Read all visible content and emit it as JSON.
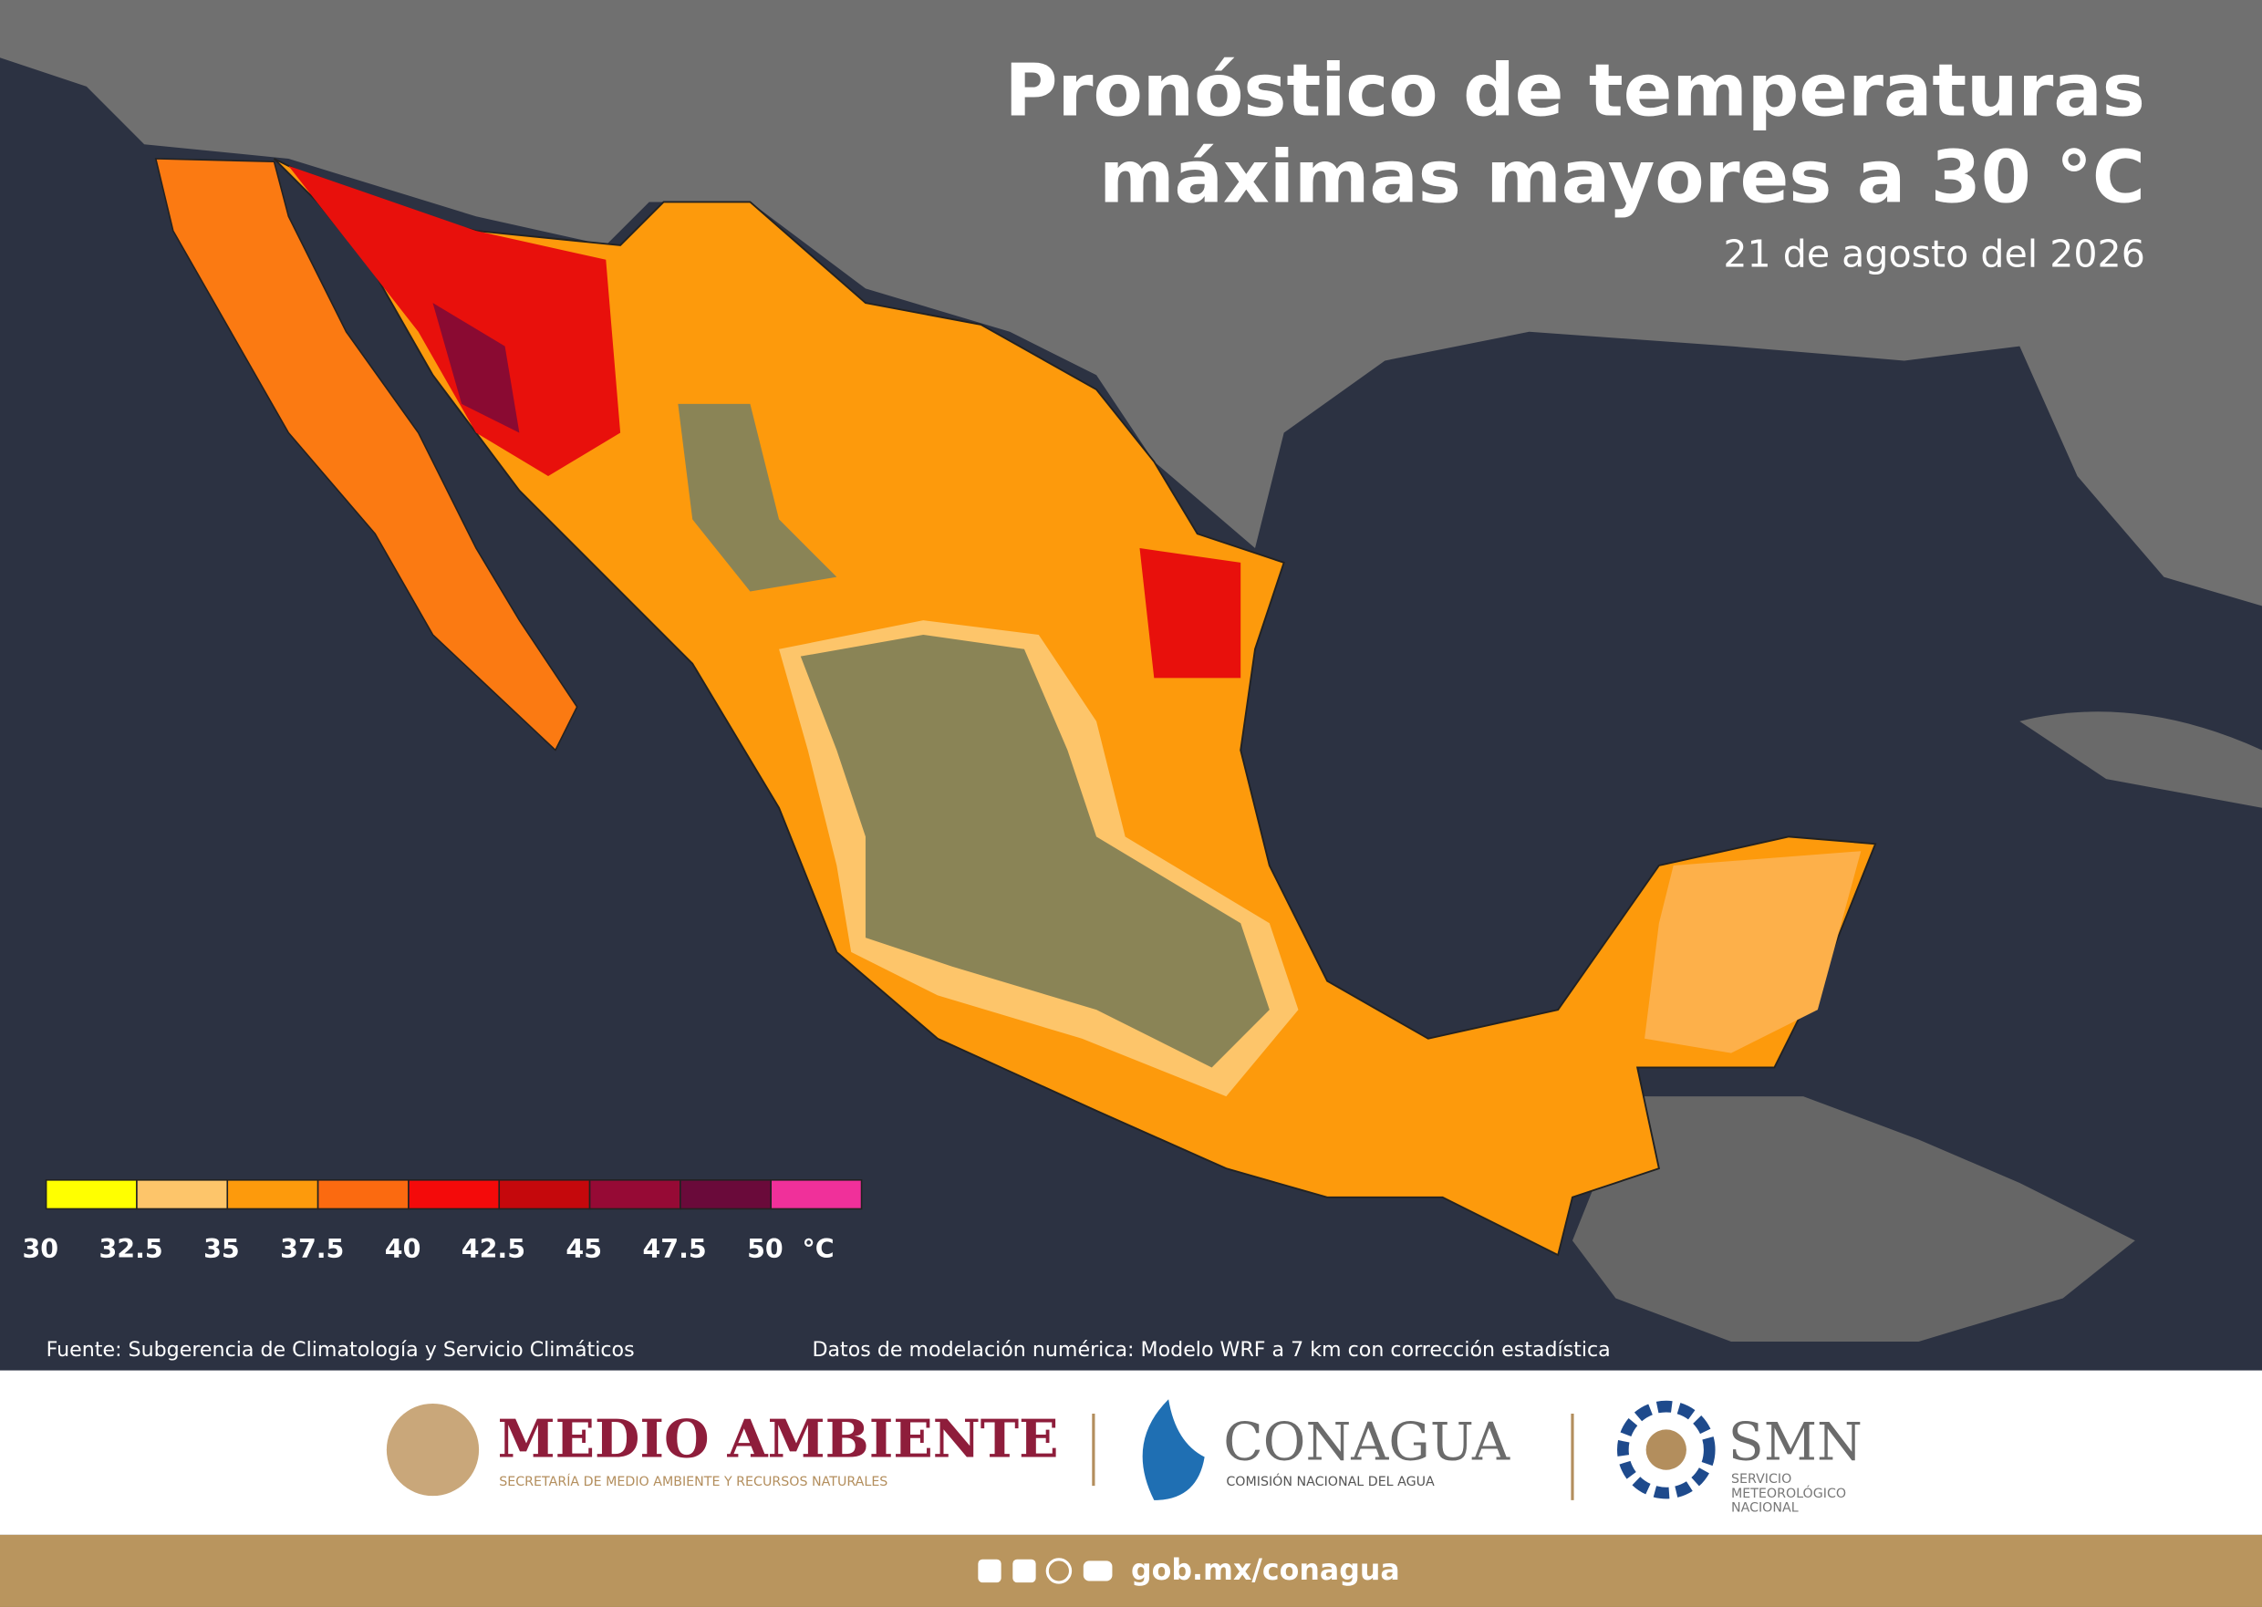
{
  "header": {
    "title_lines": [
      "Pronóstico de temperaturas",
      "máximas mayores a 30 °C"
    ],
    "date": "21 de agosto del 2026"
  },
  "legend": {
    "ticks": [
      30,
      32.5,
      35,
      37.5,
      40,
      42.5,
      45,
      47.5,
      50
    ],
    "unit": "°C",
    "colors": [
      "#ffff00",
      "#fdc56a",
      "#fd9a0c",
      "#fb6a10",
      "#f40a0a",
      "#c5080c",
      "#960a35",
      "#6a0a3a",
      "#f0309a"
    ]
  },
  "sources": {
    "left": "Fuente: Subgerencia de Climatología y Servicio Climáticos",
    "right": "Datos de modelación numérica: Modelo WRF a 7 km con corrección estadística"
  },
  "logos": {
    "medio_ambiente": "MEDIO AMBIENTE",
    "medio_ambiente_sub": "SECRETARÍA DE MEDIO AMBIENTE Y RECURSOS NATURALES",
    "conagua": "CONAGUA",
    "conagua_sub": "COMISIÓN NACIONAL DEL AGUA",
    "smn": "SMN",
    "smn_sub": [
      "SERVICIO",
      "METEOROLÓGICO",
      "NACIONAL"
    ]
  },
  "footer": {
    "url": "gob.mx/conagua"
  }
}
